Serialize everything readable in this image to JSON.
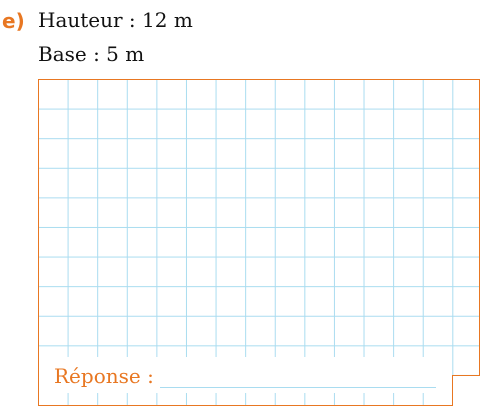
{
  "exercise": {
    "label": "e)",
    "height_line": "Hauteur : 12 m",
    "base_line": "Base : 5 m"
  },
  "answer": {
    "label": "Réponse :",
    "value": ""
  },
  "colors": {
    "accent": "#e87722",
    "grid": "#a9dcf0",
    "text": "#111111"
  }
}
